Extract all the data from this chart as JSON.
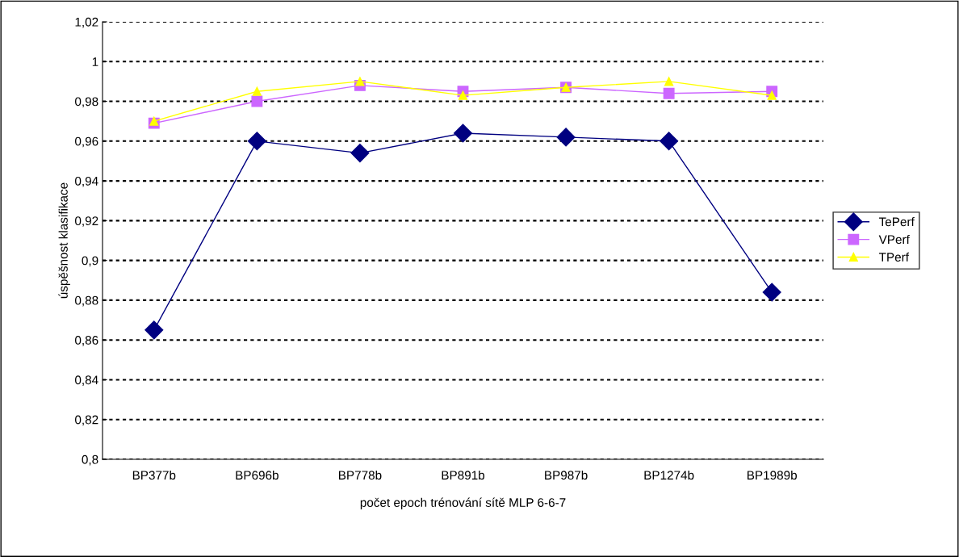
{
  "chart_data": {
    "type": "line",
    "xlabel": "počet epoch trénování sítě MLP 6-6-7",
    "ylabel": "úspěšnost klasifikace",
    "categories": [
      "BP377b",
      "BP696b",
      "BP778b",
      "BP891b",
      "BP987b",
      "BP1274b",
      "BP1989b"
    ],
    "series": [
      {
        "name": "TePerf",
        "color": "#000080",
        "marker": "diamond",
        "values": [
          0.865,
          0.96,
          0.954,
          0.964,
          0.962,
          0.96,
          0.884
        ]
      },
      {
        "name": "VPerf",
        "color": "#cc66ff",
        "marker": "square",
        "values": [
          0.969,
          0.98,
          0.988,
          0.985,
          0.987,
          0.984,
          0.985
        ]
      },
      {
        "name": "TPerf",
        "color": "#ffff00",
        "marker": "triangle",
        "values": [
          0.97,
          0.985,
          0.99,
          0.983,
          0.987,
          0.99,
          0.983
        ]
      }
    ],
    "ylim": [
      0.8,
      1.02
    ],
    "yticks": [
      {
        "value": 0.8,
        "label": "0,8"
      },
      {
        "value": 0.82,
        "label": "0,82"
      },
      {
        "value": 0.84,
        "label": "0,84"
      },
      {
        "value": 0.86,
        "label": "0,86"
      },
      {
        "value": 0.88,
        "label": "0,88"
      },
      {
        "value": 0.9,
        "label": "0,9"
      },
      {
        "value": 0.92,
        "label": "0,92"
      },
      {
        "value": 0.94,
        "label": "0,94"
      },
      {
        "value": 0.96,
        "label": "0,96"
      },
      {
        "value": 0.98,
        "label": "0,98"
      },
      {
        "value": 1,
        "label": "1"
      },
      {
        "value": 1.02,
        "label": "1,02"
      }
    ],
    "grid": "y",
    "legend": "right",
    "line_style": "solid"
  }
}
